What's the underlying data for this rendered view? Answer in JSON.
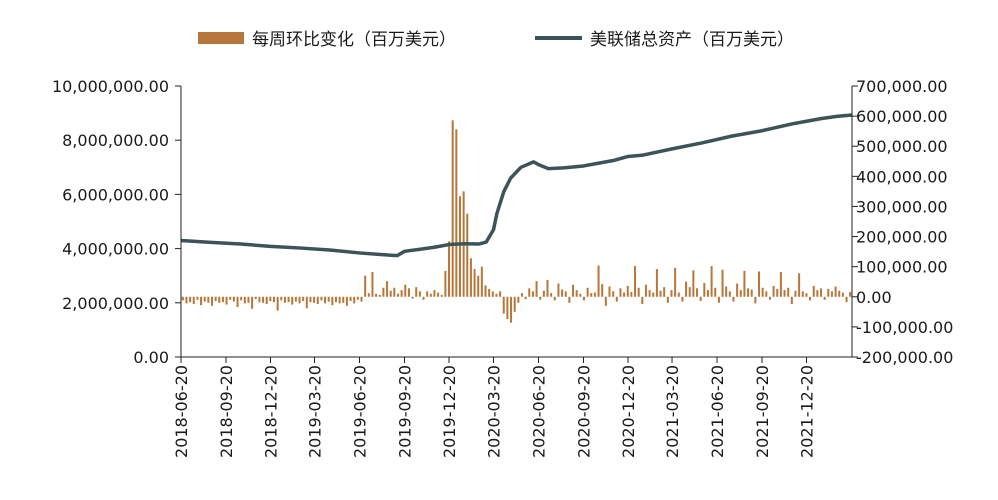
{
  "chart_data": {
    "type": "bar+line",
    "title": "",
    "legend": {
      "position": "top",
      "items": [
        {
          "name": "每周环比变化（百万美元）",
          "kind": "bar",
          "color": "#B8773A"
        },
        {
          "name": "美联储总资产（百万美元）",
          "kind": "line",
          "color": "#3C5358"
        }
      ]
    },
    "left_axis": {
      "ylim": [
        0,
        10000000
      ],
      "ticks": [
        "0.00",
        "2,000,000.00",
        "4,000,000.00",
        "6,000,000.00",
        "8,000,000.00",
        "10,000,000.00"
      ],
      "tick_values": [
        0,
        2000000,
        4000000,
        6000000,
        8000000,
        10000000
      ]
    },
    "right_axis": {
      "ylim": [
        -200000,
        700000
      ],
      "ticks": [
        "-200,000.00",
        "-100,000.00",
        "0.00",
        "100,000.00",
        "200,000.00",
        "300,000.00",
        "400,000.00",
        "500,000.00",
        "600,000.00",
        "700,000.00"
      ],
      "tick_values": [
        -200000,
        -100000,
        0,
        100000,
        200000,
        300000,
        400000,
        500000,
        600000,
        700000
      ]
    },
    "x_axis": {
      "start": "2018-06-20",
      "end": "2022-03-23",
      "ticks": [
        "2018-06-20",
        "2018-09-20",
        "2018-12-20",
        "2019-03-20",
        "2019-06-20",
        "2019-09-20",
        "2019-12-20",
        "2020-03-20",
        "2020-06-20",
        "2020-09-20",
        "2020-12-20",
        "2021-03-20",
        "2021-06-20",
        "2021-09-20",
        "2021-12-20"
      ]
    },
    "line_series": {
      "name": "美联储总资产（百万美元）",
      "color": "#3C5358",
      "points": [
        [
          "2018-06-20",
          4300000
        ],
        [
          "2018-08-20",
          4230000
        ],
        [
          "2018-10-20",
          4170000
        ],
        [
          "2018-12-20",
          4080000
        ],
        [
          "2019-02-20",
          4020000
        ],
        [
          "2019-04-20",
          3950000
        ],
        [
          "2019-06-20",
          3840000
        ],
        [
          "2019-08-20",
          3760000
        ],
        [
          "2019-09-05",
          3740000
        ],
        [
          "2019-09-20",
          3900000
        ],
        [
          "2019-10-20",
          3970000
        ],
        [
          "2019-11-20",
          4050000
        ],
        [
          "2019-12-20",
          4150000
        ],
        [
          "2020-01-20",
          4180000
        ],
        [
          "2020-02-20",
          4170000
        ],
        [
          "2020-03-05",
          4240000
        ],
        [
          "2020-03-20",
          4700000
        ],
        [
          "2020-03-27",
          5300000
        ],
        [
          "2020-04-10",
          6100000
        ],
        [
          "2020-04-24",
          6600000
        ],
        [
          "2020-05-15",
          7000000
        ],
        [
          "2020-06-10",
          7200000
        ],
        [
          "2020-06-20",
          7100000
        ],
        [
          "2020-07-10",
          6950000
        ],
        [
          "2020-08-10",
          6980000
        ],
        [
          "2020-09-20",
          7050000
        ],
        [
          "2020-10-20",
          7150000
        ],
        [
          "2020-11-20",
          7250000
        ],
        [
          "2020-12-20",
          7400000
        ],
        [
          "2021-01-20",
          7450000
        ],
        [
          "2021-03-20",
          7680000
        ],
        [
          "2021-05-20",
          7900000
        ],
        [
          "2021-07-20",
          8150000
        ],
        [
          "2021-09-20",
          8350000
        ],
        [
          "2021-11-20",
          8600000
        ],
        [
          "2021-12-20",
          8700000
        ],
        [
          "2022-01-20",
          8800000
        ],
        [
          "2022-02-20",
          8880000
        ],
        [
          "2022-03-23",
          8930000
        ]
      ]
    },
    "bar_series": {
      "name": "每周环比变化（百万美元）",
      "color": "#B8773A",
      "values": [
        -12000,
        -22000,
        -18000,
        -24000,
        -10000,
        -28000,
        -16000,
        -20000,
        -30000,
        -14000,
        -20000,
        -18000,
        -26000,
        -10000,
        -16000,
        -34000,
        -12000,
        -22000,
        -20000,
        -40000,
        -8000,
        -18000,
        -20000,
        -24000,
        -14000,
        -18000,
        -46000,
        -12000,
        -20000,
        -18000,
        -26000,
        -16000,
        -22000,
        -14000,
        -38000,
        -18000,
        -20000,
        -24000,
        -12000,
        -22000,
        -16000,
        -28000,
        -18000,
        -22000,
        -20000,
        -30000,
        -14000,
        -22000,
        -10000,
        -16000,
        70000,
        12000,
        82000,
        10000,
        6000,
        30000,
        52000,
        20000,
        30000,
        10000,
        22000,
        40000,
        28000,
        -6000,
        32000,
        18000,
        -10000,
        18000,
        10000,
        22000,
        14000,
        6000,
        86000,
        184000,
        586000,
        556000,
        334000,
        350000,
        276000,
        128000,
        92000,
        70000,
        100000,
        38000,
        26000,
        18000,
        10000,
        18000,
        -56000,
        -74000,
        -86000,
        -50000,
        -20000,
        12000,
        -8000,
        28000,
        18000,
        52000,
        -10000,
        20000,
        56000,
        12000,
        -12000,
        44000,
        24000,
        18000,
        -20000,
        40000,
        22000,
        10000,
        -12000,
        30000,
        12000,
        14000,
        104000,
        42000,
        -30000,
        34000,
        18000,
        -16000,
        28000,
        14000,
        36000,
        16000,
        102000,
        30000,
        -24000,
        40000,
        22000,
        14000,
        92000,
        20000,
        32000,
        -20000,
        22000,
        96000,
        14000,
        -16000,
        50000,
        32000,
        88000,
        28000,
        -14000,
        46000,
        22000,
        102000,
        30000,
        -20000,
        90000,
        34000,
        18000,
        -16000,
        44000,
        22000,
        86000,
        28000,
        24000,
        -22000,
        84000,
        30000,
        18000,
        -10000,
        36000,
        26000,
        82000,
        22000,
        30000,
        -24000,
        20000,
        78000,
        18000,
        12000,
        -12000,
        36000,
        22000,
        28000,
        -10000,
        26000,
        18000,
        34000,
        20000,
        14000,
        -18000,
        16000
      ]
    },
    "grid": false
  }
}
